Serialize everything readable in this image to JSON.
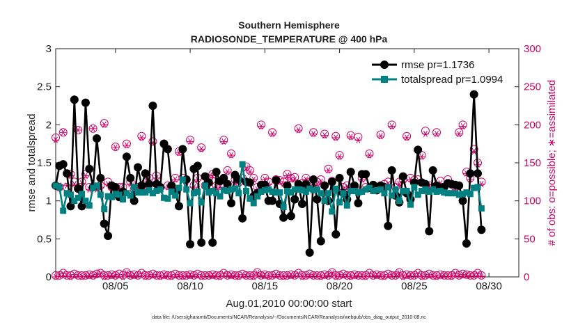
{
  "chart_data": {
    "type": "line",
    "title": "Southern Hemisphere",
    "subtitle": "RADIOSONDE_TEMPERATURE @ 400 hPa",
    "xlabel": "Aug.01,2010 00:00:00 start",
    "ylabel": "rmse and totalspread",
    "ylabel_right": "# of obs: o=possible; ∗=assimilated",
    "footnote": "data file: /Users/gharamti/Documents/NCAR/Reanalysis/~/Documents/NCAR/Reanalysis/webpub/obs_diag_output_2010-08.nc",
    "x_start": 1,
    "x_step": 0.25,
    "xlim": [
      1,
      32
    ],
    "ylim": [
      0,
      3
    ],
    "ylim_right": [
      0,
      300
    ],
    "x_ticks": [
      5,
      10,
      15,
      20,
      25,
      30
    ],
    "x_tick_labels": [
      "08/05",
      "08/10",
      "08/15",
      "08/20",
      "08/25",
      "08/30"
    ],
    "y_ticks": [
      0,
      0.5,
      1,
      1.5,
      2,
      2.5,
      3
    ],
    "y_tick_labels": [
      "0",
      "0.5",
      "1",
      "1.5",
      "2",
      "2.5",
      "3"
    ],
    "y_ticks_right": [
      0,
      50,
      100,
      150,
      200,
      250,
      300
    ],
    "y_tick_labels_right": [
      "0",
      "50",
      "100",
      "150",
      "200",
      "250",
      "300"
    ],
    "grid": false,
    "legend_position": "top-right",
    "colors": {
      "rmse": "#000000",
      "totalspread": "#008080",
      "obs": "#cc0066"
    },
    "series": [
      {
        "name": "rmse pr=1.1736",
        "marker": "circle",
        "values": [
          1.2,
          1.46,
          1.48,
          1.36,
          0.93,
          2.33,
          1.16,
          0.93,
          2.29,
          1.42,
          1.18,
          1.82,
          1.3,
          0.7,
          0.54,
          1.2,
          1.18,
          1.05,
          1.12,
          1.58,
          1.3,
          1.0,
          1.44,
          1.2,
          1.36,
          1.22,
          2.25,
          1.22,
          1.18,
          1.75,
          1.68,
          1.2,
          1.12,
          0.93,
          1.68,
          1.28,
          0.43,
          1.42,
          1.46,
          0.45,
          1.32,
          1.24,
          0.45,
          1.38,
          1.26,
          1.3,
          1.22,
          0.97,
          1.34,
          1.28,
          0.77,
          1.25,
          1.24,
          1.06,
          1.1,
          1.21,
          1.21,
          1.0,
          1.0,
          1.27,
          0.96,
          0.78,
          1.2,
          0.8,
          1.02,
          1.22,
          0.96,
          1.22,
          0.32,
          1.28,
          1.02,
          0.47,
          1.2,
          1.0,
          1.25,
          0.56,
          1.3,
          1.1,
          1.02,
          1.38,
          1.2,
          0.97,
          1.35,
          1.35,
          1.17,
          1.21,
          1.14,
          1.2,
          1.18,
          0.67,
          1.4,
          1.07,
          0.98,
          1.32,
          1.1,
          1.02,
          1.24,
          1.67,
          1.24,
          1.22,
          0.6,
          1.4,
          1.2,
          1.17,
          1.18,
          1.23,
          1.22,
          1.21,
          1.2,
          1.0,
          0.44,
          1.36,
          2.4,
          1.36,
          0.62
        ]
      },
      {
        "name": "totalspread pr=1.0994",
        "marker": "square",
        "values": [
          1.2,
          1.18,
          0.87,
          1.1,
          1.08,
          1.0,
          1.04,
          1.09,
          1.0,
          0.94,
          1.17,
          1.2,
          1.08,
          0.89,
          1.06,
          1.05,
          1.09,
          1.08,
          1.02,
          1.1,
          1.07,
          1.18,
          1.11,
          1.11,
          1.11,
          1.14,
          1.1,
          1.13,
          1.15,
          1.04,
          1.03,
          1.12,
          1.07,
          1.17,
          1.28,
          1.15,
          0.97,
          1.1,
          1.12,
          0.98,
          1.2,
          1.11,
          1.13,
          1.1,
          1.06,
          1.14,
          1.13,
          1.15,
          1.16,
          1.1,
          1.48,
          1.13,
          1.03,
          0.97,
          1.06,
          1.12,
          1.14,
          1.15,
          1.12,
          1.11,
          1.11,
          0.92,
          1.13,
          1.11,
          1.15,
          1.15,
          1.14,
          1.12,
          1.16,
          1.14,
          1.15,
          1.1,
          1.0,
          1.1,
          0.86,
          1.16,
          0.98,
          1.1,
          0.94,
          1.13,
          1.13,
          1.11,
          1.12,
          1.15,
          1.17,
          1.13,
          1.14,
          1.15,
          1.1,
          1.18,
          1.07,
          1.15,
          1.0,
          1.13,
          1.13,
          0.95,
          1.18,
          1.08,
          1.13,
          1.15,
          1.12,
          1.15,
          1.12,
          1.13,
          1.11,
          1.1,
          1.1,
          1.1,
          1.08,
          1.09,
          1.11,
          1.09,
          1.17,
          1.18,
          0.9
        ]
      },
      {
        "name": "possible",
        "marker": "open-circle",
        "axis": "right",
        "values": [
          183,
          118,
          190,
          118,
          135,
          125,
          193,
          125,
          135,
          118,
          195,
          118,
          120,
          202,
          125,
          118,
          171,
          118,
          118,
          175,
          125,
          115,
          118,
          185,
          120,
          130,
          178,
          133,
          118,
          175,
          120,
          120,
          130,
          165,
          130,
          128,
          180,
          120,
          130,
          170,
          120,
          130,
          135,
          120,
          120,
          180,
          140,
          162,
          128,
          124,
          130,
          145,
          140,
          130,
          118,
          200,
          130,
          125,
          190,
          128,
          127,
          125,
          135,
          130,
          131,
          195,
          123,
          130,
          125,
          190,
          125,
          128,
          188,
          142,
          126,
          185,
          160,
          118,
          120,
          186,
          118,
          184,
          130,
          118,
          162,
          120,
          118,
          187,
          122,
          125,
          200,
          118,
          125,
          128,
          185,
          130,
          127,
          128,
          160,
          192,
          120,
          118,
          190,
          126,
          118,
          128,
          122,
          118,
          190,
          200,
          138,
          130,
          168,
          150,
          125
        ]
      },
      {
        "name": "assimilated",
        "marker": "asterisk",
        "axis": "right",
        "values": [
          180,
          120,
          190,
          120,
          133,
          122,
          193,
          123,
          133,
          115,
          195,
          115,
          118,
          200,
          122,
          115,
          170,
          115,
          115,
          173,
          122,
          112,
          115,
          183,
          118,
          128,
          176,
          130,
          115,
          173,
          118,
          118,
          128,
          163,
          128,
          125,
          178,
          118,
          128,
          168,
          118,
          128,
          133,
          118,
          118,
          178,
          138,
          160,
          125,
          122,
          128,
          143,
          138,
          128,
          115,
          198,
          128,
          122,
          188,
          125,
          125,
          122,
          133,
          128,
          128,
          193,
          120,
          128,
          122,
          188,
          122,
          125,
          186,
          140,
          123,
          183,
          158,
          115,
          118,
          184,
          115,
          180,
          128,
          115,
          160,
          118,
          115,
          185,
          120,
          122,
          198,
          115,
          122,
          125,
          183,
          128,
          125,
          125,
          158,
          188,
          118,
          115,
          188,
          123,
          115,
          125,
          120,
          115,
          188,
          198,
          136,
          128,
          165,
          148,
          122
        ]
      }
    ],
    "obs_possible_baseline": [
      2,
      2,
      5,
      2,
      2,
      4,
      2,
      2,
      2,
      3,
      2,
      4,
      5,
      2,
      2,
      3,
      2,
      4,
      2,
      6,
      2,
      3,
      2,
      5,
      2,
      2,
      4,
      2,
      2,
      3,
      2,
      2,
      4,
      2,
      2,
      2,
      3,
      2,
      4,
      2,
      2,
      2,
      3,
      2,
      2,
      5,
      2,
      3,
      2,
      2,
      4,
      2,
      2,
      2,
      6,
      2,
      3,
      2,
      2,
      4,
      2,
      2,
      2,
      3,
      2,
      5,
      2,
      2,
      4,
      2,
      2,
      2,
      3,
      2,
      6,
      2,
      2,
      4,
      2,
      2,
      3,
      2,
      2,
      2,
      5,
      2,
      3,
      2,
      2,
      4,
      2,
      2,
      6,
      2,
      3,
      2,
      2,
      5,
      2,
      2,
      4,
      2,
      2,
      3,
      2,
      2,
      2,
      5,
      2,
      4,
      3,
      2,
      2,
      5,
      2
    ],
    "obs_assimilated_baseline": [
      0,
      1,
      4,
      1,
      0,
      3,
      1,
      0,
      1,
      2,
      1,
      3,
      4,
      0,
      1,
      2,
      1,
      3,
      0,
      5,
      1,
      2,
      1,
      4,
      0,
      1,
      3,
      1,
      0,
      2,
      1,
      0,
      3,
      1,
      0,
      1,
      2,
      1,
      3,
      0,
      1,
      1,
      2,
      1,
      0,
      4,
      1,
      2,
      1,
      0,
      3,
      1,
      1,
      0,
      5,
      1,
      2,
      0,
      1,
      3,
      1,
      0,
      1,
      2,
      1,
      4,
      0,
      1,
      3,
      1,
      1,
      0,
      2,
      1,
      5,
      0,
      1,
      3,
      1,
      0,
      2,
      1,
      1,
      0,
      4,
      1,
      2,
      1,
      0,
      3,
      1,
      1,
      5,
      0,
      2,
      1,
      1,
      4,
      0,
      1,
      3,
      1,
      0,
      2,
      1,
      1,
      0,
      4,
      1,
      3,
      2,
      1,
      1,
      4,
      1
    ]
  }
}
